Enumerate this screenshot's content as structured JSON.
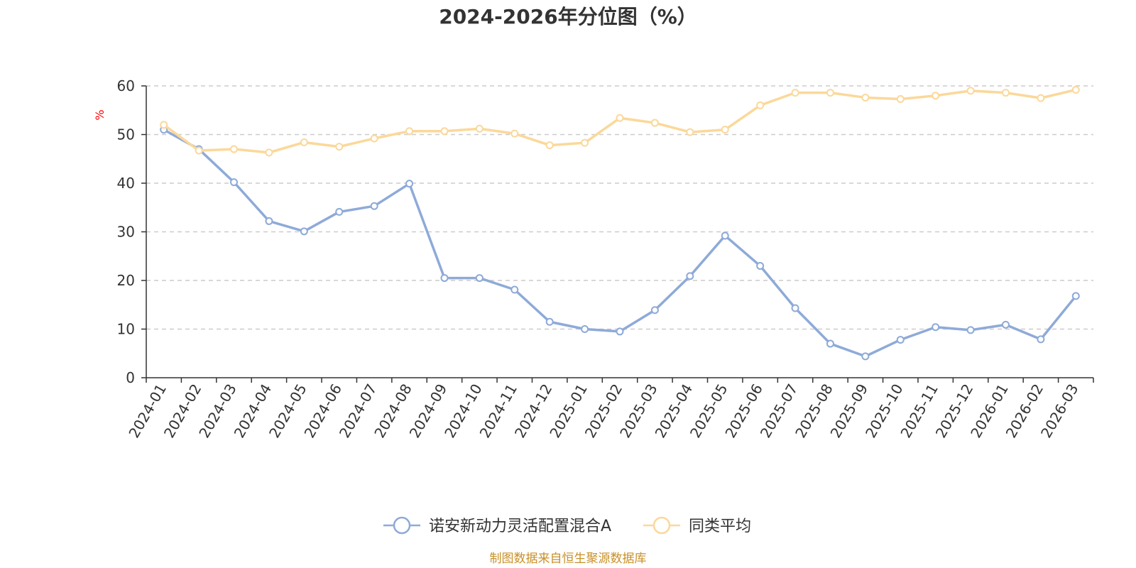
{
  "chart_data": {
    "type": "line",
    "title": "2024-2026年分位图（%）",
    "ylabel": "%",
    "xlabel": "",
    "ylim": [
      0,
      60
    ],
    "yticks": [
      0,
      10,
      20,
      30,
      40,
      50,
      60
    ],
    "grid": true,
    "legend_position": "bottom-center",
    "categories": [
      "2024-01",
      "2024-02",
      "2024-03",
      "2024-04",
      "2024-05",
      "2024-06",
      "2024-07",
      "2024-08",
      "2024-09",
      "2024-10",
      "2024-11",
      "2024-12",
      "2025-01",
      "2025-02",
      "2025-03",
      "2025-04",
      "2025-05",
      "2025-06",
      "2025-07",
      "2025-08",
      "2025-09",
      "2025-10",
      "2025-11",
      "2025-12",
      "2026-01",
      "2026-02",
      "2026-03"
    ],
    "series": [
      {
        "name": "诺安新动力灵活配置混合A",
        "color": "#8eaad8",
        "values": [
          51.0,
          47.0,
          40.2,
          32.2,
          30.1,
          34.1,
          35.3,
          39.9,
          20.5,
          20.5,
          18.1,
          11.5,
          10.0,
          9.5,
          13.9,
          20.9,
          29.2,
          23.0,
          14.3,
          7.0,
          4.4,
          7.8,
          10.4,
          9.8,
          10.9,
          7.9,
          16.8
        ]
      },
      {
        "name": "同类平均",
        "color": "#fbd89a",
        "values": [
          52.0,
          46.7,
          47.0,
          46.3,
          48.4,
          47.5,
          49.2,
          50.7,
          50.7,
          51.2,
          50.2,
          47.8,
          48.3,
          53.4,
          52.4,
          50.5,
          51.0,
          56.0,
          58.6,
          58.6,
          57.6,
          57.3,
          58.0,
          59.0,
          58.6,
          57.5,
          59.2
        ]
      }
    ],
    "source_note": "制图数据来自恒生聚源数据库"
  }
}
